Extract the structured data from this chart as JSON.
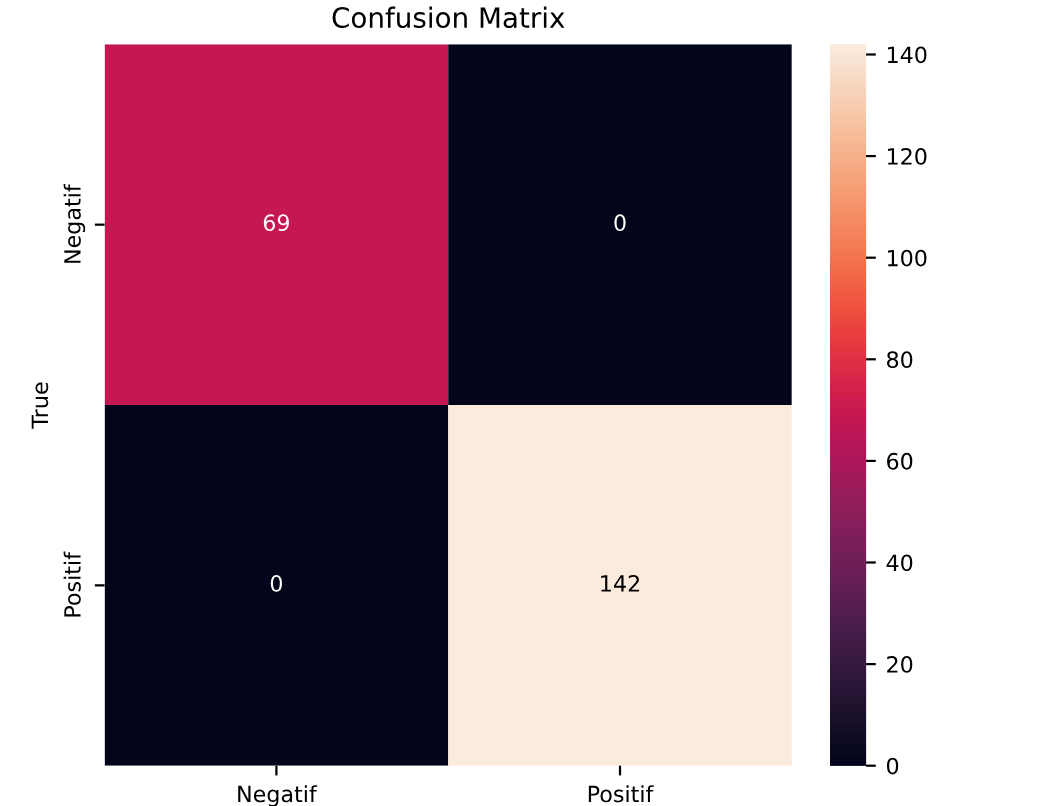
{
  "chart_data": {
    "type": "heatmap",
    "title": "Confusion Matrix",
    "ylabel": "True",
    "categories": [
      "Negatif",
      "Positif"
    ],
    "y_categories": [
      "Negatif",
      "Positif"
    ],
    "cells": [
      [
        69,
        0
      ],
      [
        0,
        142
      ]
    ],
    "data_labels": true,
    "clim": [
      0,
      142
    ],
    "cticks": [
      0,
      20,
      40,
      60,
      80,
      100,
      120,
      140
    ]
  }
}
